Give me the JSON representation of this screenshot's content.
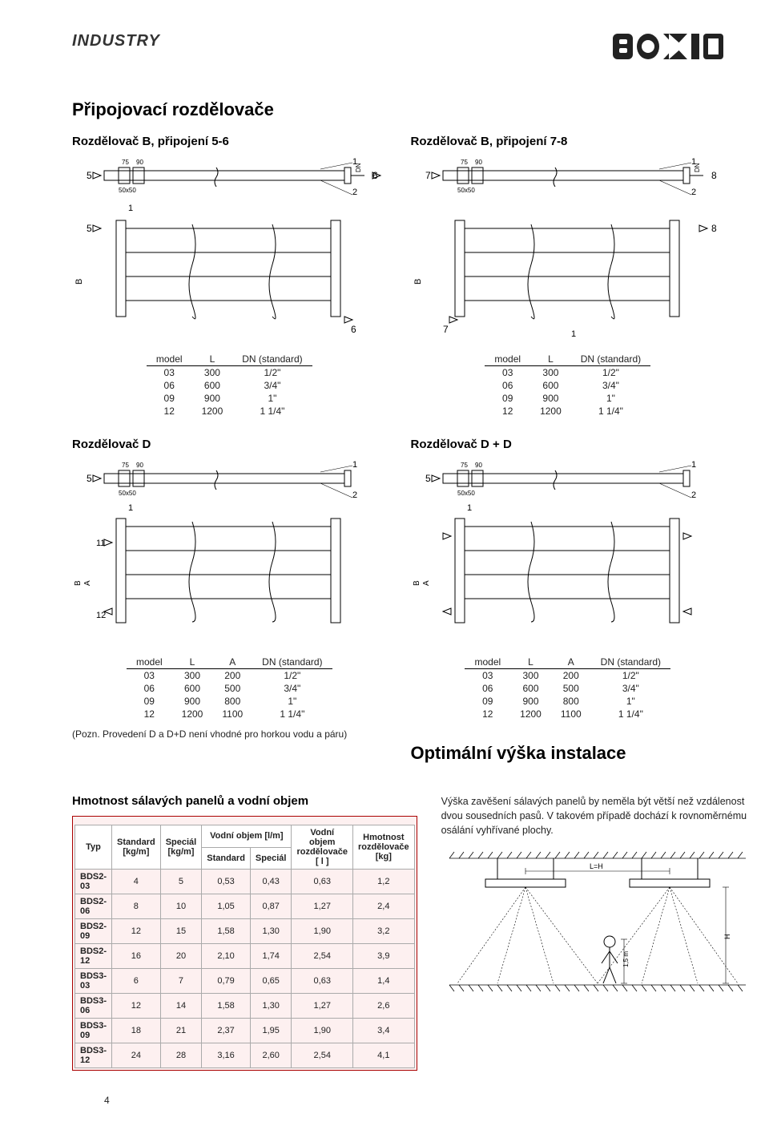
{
  "header": {
    "industry": "INDUSTRY",
    "logo": "BOKI"
  },
  "section_title": "Připojovací rozdělovače",
  "page_number": "4",
  "rozB56": {
    "title": "Rozdělovač B, připojení 5-6",
    "dim_50x50": "50x50",
    "dim_75": "75",
    "dim_90": "90",
    "p5": "5",
    "p6": "6",
    "n1": "1",
    "n2": "2",
    "dn": "DN",
    "b": "B"
  },
  "rozB78": {
    "title": "Rozdělovač B, připojení 7-8",
    "dim_50x50": "50x50",
    "dim_75": "75",
    "dim_90": "90",
    "p7": "7",
    "p8": "8",
    "n1": "1",
    "n2": "2",
    "dn": "DN",
    "b": "B"
  },
  "rozD": {
    "title": "Rozdělovač D",
    "dim_50x50": "50x50",
    "dim_75": "75",
    "dim_90": "90",
    "p5": "5",
    "n1": "1",
    "n2": "2",
    "n11": "11",
    "n12": "12",
    "b": "B",
    "a": "A"
  },
  "rozDD": {
    "title": "Rozdělovač D + D",
    "dim_50x50": "50x50",
    "dim_75": "75",
    "dim_90": "90",
    "p5": "5",
    "n1": "1",
    "n2": "2",
    "b": "B",
    "a": "A"
  },
  "table2col": {
    "headers": [
      "model",
      "L",
      "DN (standard)"
    ],
    "rows": [
      [
        "03",
        "300",
        "1/2\""
      ],
      [
        "06",
        "600",
        "3/4\""
      ],
      [
        "09",
        "900",
        "1\""
      ],
      [
        "12",
        "1200",
        "1 1/4\""
      ]
    ]
  },
  "table3col": {
    "headers": [
      "model",
      "L",
      "A",
      "DN (standard)"
    ],
    "rows": [
      [
        "03",
        "300",
        "200",
        "1/2\""
      ],
      [
        "06",
        "600",
        "500",
        "3/4\""
      ],
      [
        "09",
        "900",
        "800",
        "1\""
      ],
      [
        "12",
        "1200",
        "1100",
        "1 1/4\""
      ]
    ]
  },
  "note_text": "(Pozn. Provedení D a D+D není vhodné pro horkou vodu a páru)",
  "weights": {
    "title": "Hmotnost sálavých panelů a vodní objem",
    "headers": {
      "typ": "Typ",
      "std": "Standard [kg/m]",
      "spec": "Speciál [kg/m]",
      "vol_group": "Vodní objem [l/m]",
      "vol_std": "Standard",
      "vol_spec": "Speciál",
      "vol_roz": "Vodní objem rozdělovače [ l ]",
      "hm_roz": "Hmotnost rozdělovače [kg]"
    },
    "rows": [
      [
        "BDS2-03",
        "4",
        "5",
        "0,53",
        "0,43",
        "0,63",
        "1,2"
      ],
      [
        "BDS2-06",
        "8",
        "10",
        "1,05",
        "0,87",
        "1,27",
        "2,4"
      ],
      [
        "BDS2-09",
        "12",
        "15",
        "1,58",
        "1,30",
        "1,90",
        "3,2"
      ],
      [
        "BDS2-12",
        "16",
        "20",
        "2,10",
        "1,74",
        "2,54",
        "3,9"
      ],
      [
        "BDS3-03",
        "6",
        "7",
        "0,79",
        "0,65",
        "0,63",
        "1,4"
      ],
      [
        "BDS3-06",
        "12",
        "14",
        "1,58",
        "1,30",
        "1,27",
        "2,6"
      ],
      [
        "BDS3-09",
        "18",
        "21",
        "2,37",
        "1,95",
        "1,90",
        "3,4"
      ],
      [
        "BDS3-12",
        "24",
        "28",
        "3,16",
        "2,60",
        "2,54",
        "4,1"
      ]
    ]
  },
  "optimal": {
    "title": "Optimální výška instalace",
    "text": "Výška zavěšení sálavých panelů by neměla být větší než vzdálenost dvou sousedních pasů. V takovém případě dochází k rovnoměrnému osálání vyhřívané plochy.",
    "lh": "L=H",
    "h": "H",
    "h15": "1,5 m"
  },
  "colors": {
    "line": "#000000",
    "table_border": "#aaaaaa",
    "rose_bg": "#fdf0f0",
    "rose_border": "#a83232",
    "hatch": "#000000"
  }
}
